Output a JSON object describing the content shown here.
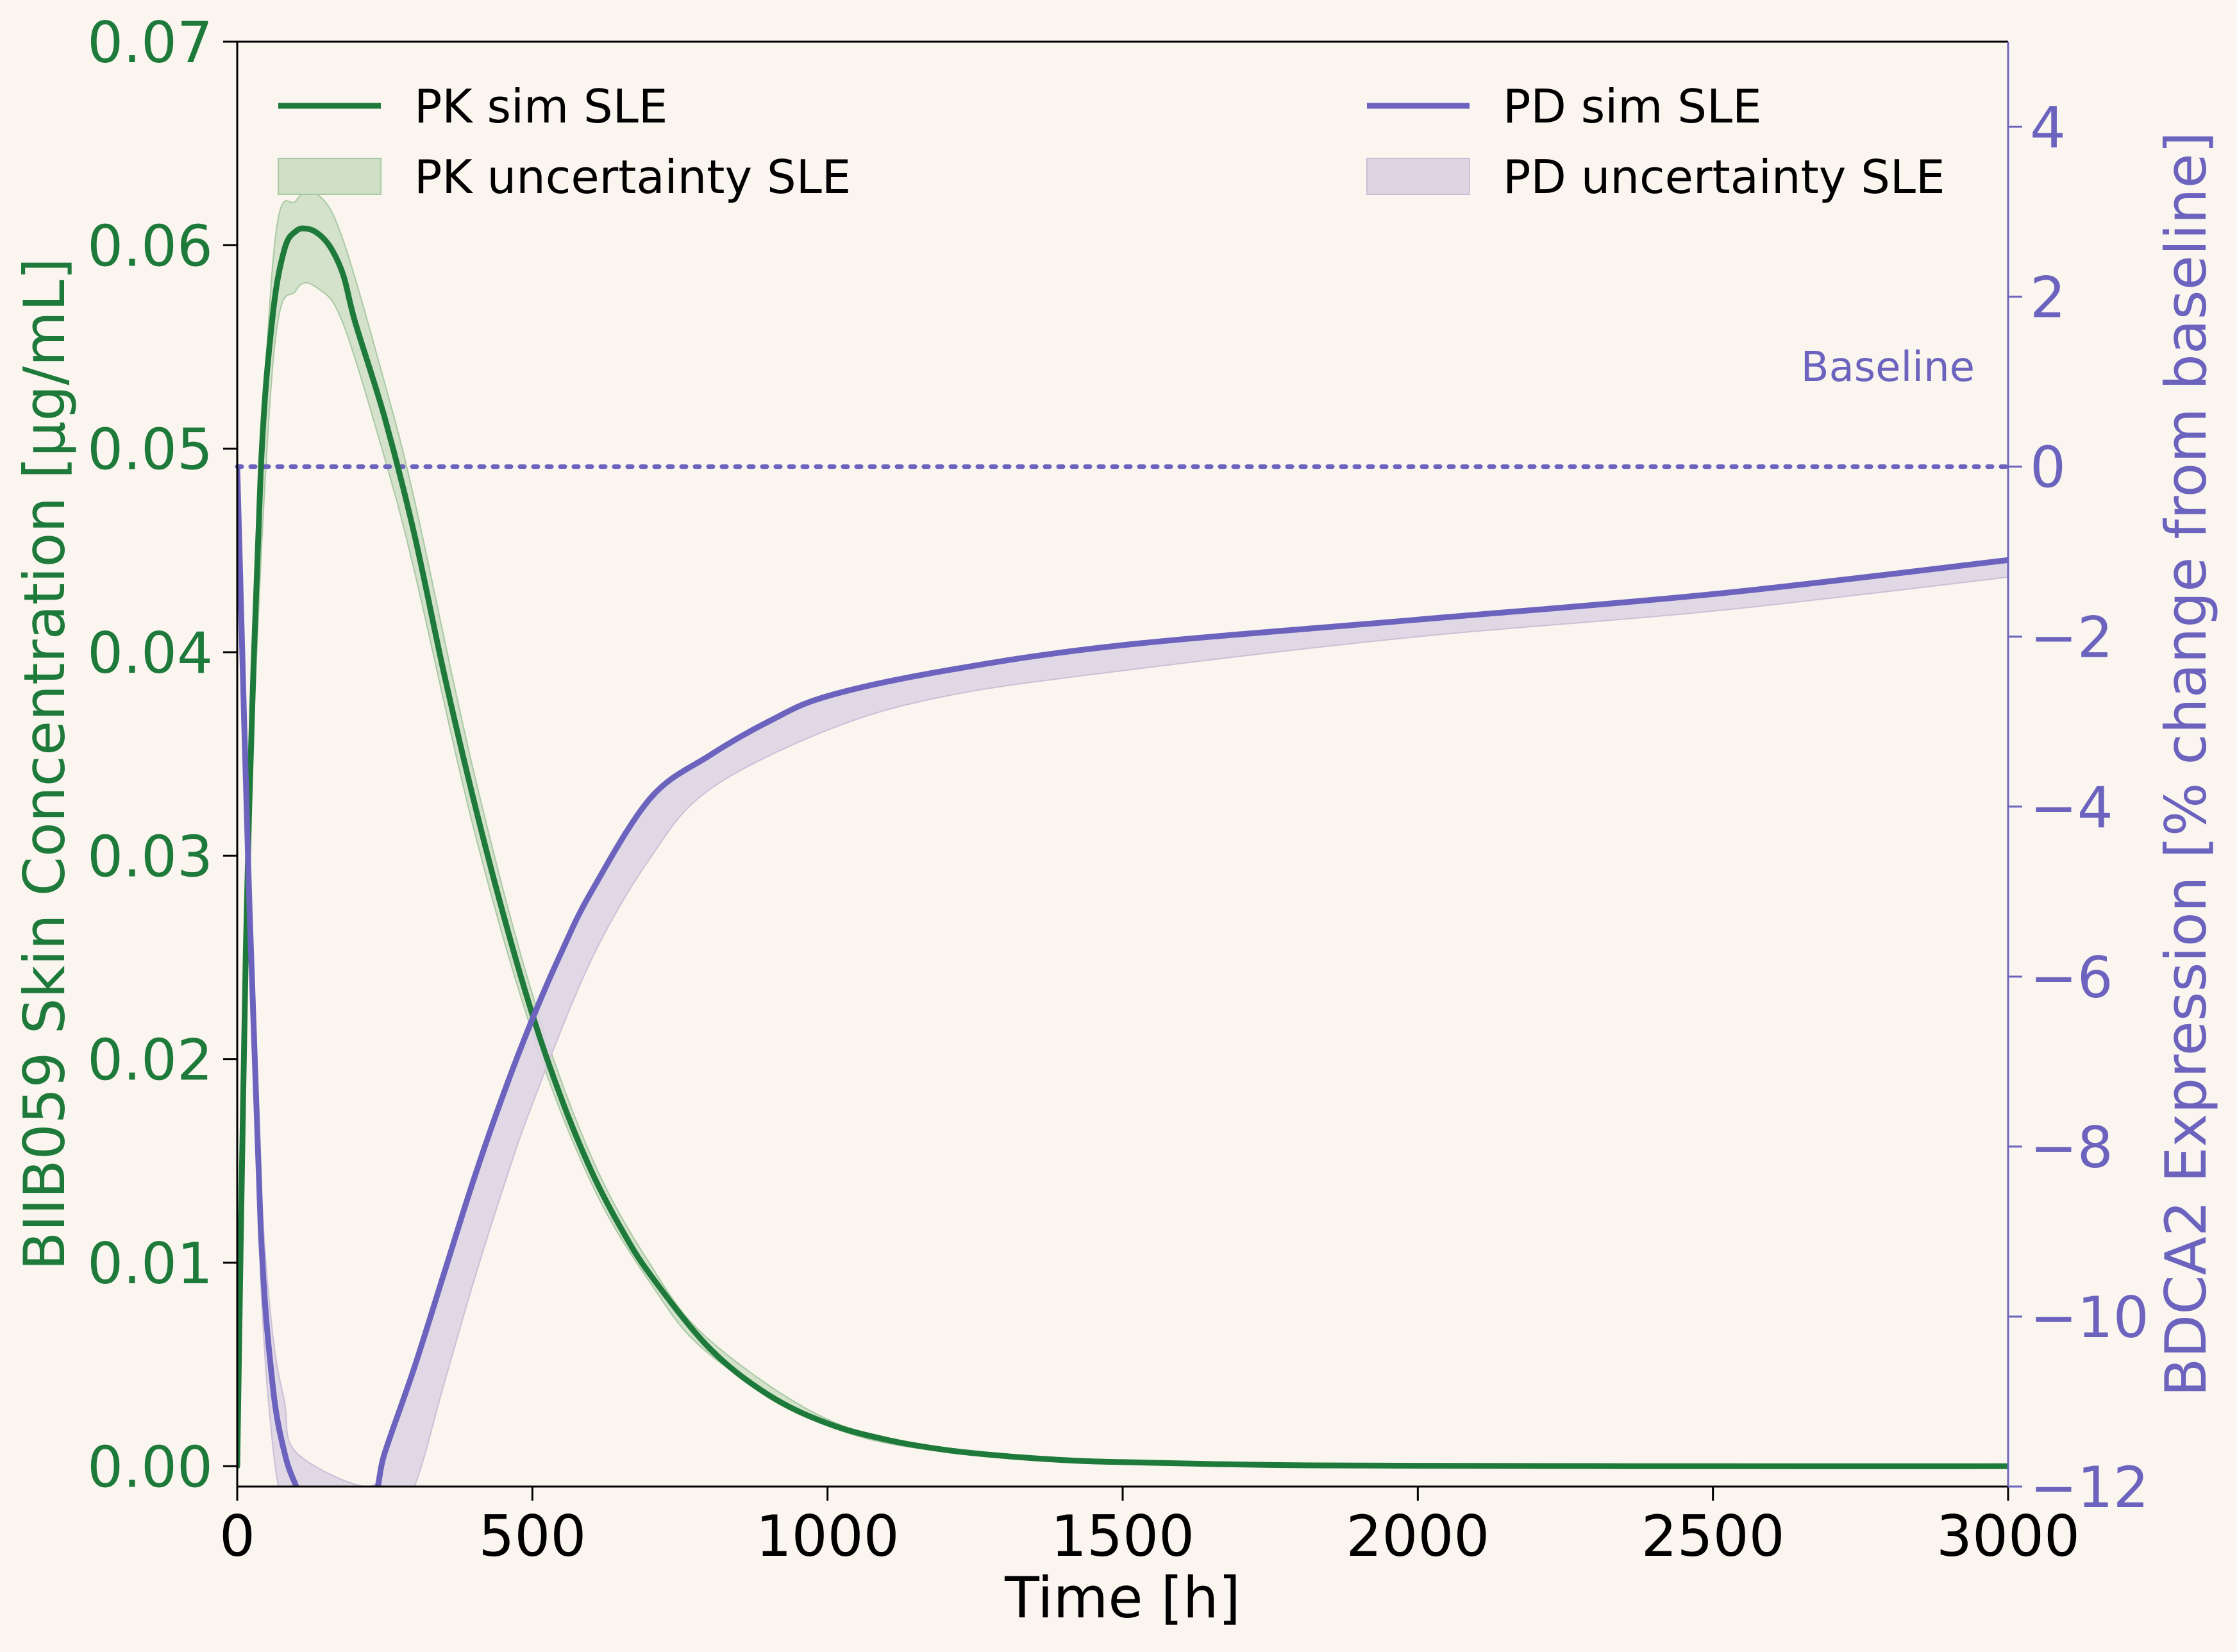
{
  "chart_data": {
    "type": "line",
    "xlabel": "Time [h]",
    "ylabel_left": "BIIB059 Skin Concentration [µg/mL]",
    "ylabel_right": "BDCA2 Expression [% change from baseline]",
    "xlim": [
      0,
      3000
    ],
    "ylim_left": [
      -0.001,
      0.07
    ],
    "ylim_right": [
      -12,
      5
    ],
    "x_ticks": [
      "0",
      "500",
      "1000",
      "1500",
      "2000",
      "2500",
      "3000"
    ],
    "y_left_ticks": [
      "0.00",
      "0.01",
      "0.02",
      "0.03",
      "0.04",
      "0.05",
      "0.06",
      "0.07"
    ],
    "y_right_ticks": [
      "−12",
      "−10",
      "−8",
      "−6",
      "−4",
      "−2",
      "0",
      "2",
      "4"
    ],
    "grid": false,
    "colors": {
      "pk": "#1e7a3a",
      "pk_band": "#cfdfc6",
      "pd": "#6b63be",
      "pd_band": "#ddd5e2",
      "background": "#faf5ee"
    },
    "legend": {
      "left": [
        {
          "label": "PK sim SLE",
          "kind": "line",
          "series": "pk"
        },
        {
          "label": "PK uncertainty SLE",
          "kind": "band",
          "series": "pk"
        }
      ],
      "right": [
        {
          "label": "PD sim SLE",
          "kind": "line",
          "series": "pd"
        },
        {
          "label": "PD uncertainty SLE",
          "kind": "band",
          "series": "pd"
        }
      ]
    },
    "annotation": {
      "text": "Baseline",
      "y_right": 0
    },
    "series": [
      {
        "name": "PK sim SLE",
        "axis": "left",
        "x": [
          0,
          10,
          20,
          40,
          60,
          80,
          100,
          120,
          140,
          160,
          180,
          200,
          250,
          300,
          350,
          400,
          450,
          500,
          550,
          600,
          650,
          700,
          800,
          900,
          1000,
          1100,
          1200,
          1300,
          1400,
          1500,
          1750,
          2000,
          2500,
          3000
        ],
        "values": [
          0,
          0.018,
          0.032,
          0.049,
          0.0565,
          0.0598,
          0.0607,
          0.0608,
          0.0605,
          0.0598,
          0.0585,
          0.0562,
          0.0515,
          0.0458,
          0.039,
          0.0328,
          0.0272,
          0.0222,
          0.018,
          0.0145,
          0.0117,
          0.0094,
          0.0058,
          0.0035,
          0.0021,
          0.0013,
          0.0008,
          0.0005,
          0.0003,
          0.0002,
          6e-05,
          2e-05,
          0,
          0
        ]
      },
      {
        "name": "PK uncertainty SLE",
        "axis": "left",
        "band": true,
        "x": [
          0,
          20,
          60,
          100,
          140,
          180,
          250,
          300,
          400,
          500,
          600,
          700,
          800,
          1000,
          1200,
          1500,
          2000,
          3000
        ],
        "lower": [
          0,
          0.03,
          0.054,
          0.0578,
          0.0578,
          0.0561,
          0.0495,
          0.044,
          0.0314,
          0.0213,
          0.0139,
          0.009,
          0.0055,
          0.002,
          0.0007,
          0.0001,
          0,
          0
        ],
        "upper": [
          0,
          0.034,
          0.059,
          0.0622,
          0.0624,
          0.0602,
          0.0532,
          0.0475,
          0.0342,
          0.0232,
          0.0152,
          0.0099,
          0.0062,
          0.0023,
          0.0009,
          0.0002,
          0,
          0
        ]
      },
      {
        "name": "PD sim SLE",
        "axis": "right",
        "x": [
          0,
          20,
          40,
          60,
          80,
          100,
          120,
          220,
          250,
          300,
          350,
          400,
          450,
          500,
          550,
          600,
          700,
          800,
          900,
          1000,
          1200,
          1500,
          2000,
          2500,
          3000
        ],
        "values": [
          0,
          -5,
          -9,
          -10.8,
          -11.6,
          -12,
          -12.3,
          -12.3,
          -11.6,
          -10.6,
          -9.5,
          -8.4,
          -7.4,
          -6.5,
          -5.7,
          -5.0,
          -3.9,
          -3.4,
          -3.0,
          -2.7,
          -2.4,
          -2.1,
          -1.8,
          -1.5,
          -1.1
        ]
      },
      {
        "name": "PD uncertainty SLE",
        "axis": "right",
        "band": true,
        "x": [
          0,
          20,
          40,
          60,
          80,
          100,
          220,
          250,
          300,
          350,
          400,
          450,
          500,
          600,
          700,
          800,
          1000,
          1200,
          1500,
          2000,
          2500,
          3000
        ],
        "lower": [
          0,
          -5.5,
          -9.6,
          -11.5,
          -12.3,
          -12.5,
          -12.5,
          -12.5,
          -12,
          -10.8,
          -9.6,
          -8.5,
          -7.5,
          -5.8,
          -4.6,
          -3.8,
          -3.1,
          -2.7,
          -2.4,
          -2.0,
          -1.7,
          -1.3
        ],
        "upper": [
          0,
          -4.5,
          -8.4,
          -10.2,
          -11.0,
          -11.6,
          -12.0,
          -11.6,
          -10.6,
          -9.5,
          -8.4,
          -7.4,
          -6.5,
          -5.0,
          -3.9,
          -3.4,
          -2.7,
          -2.4,
          -2.1,
          -1.8,
          -1.5,
          -1.1
        ]
      }
    ]
  }
}
